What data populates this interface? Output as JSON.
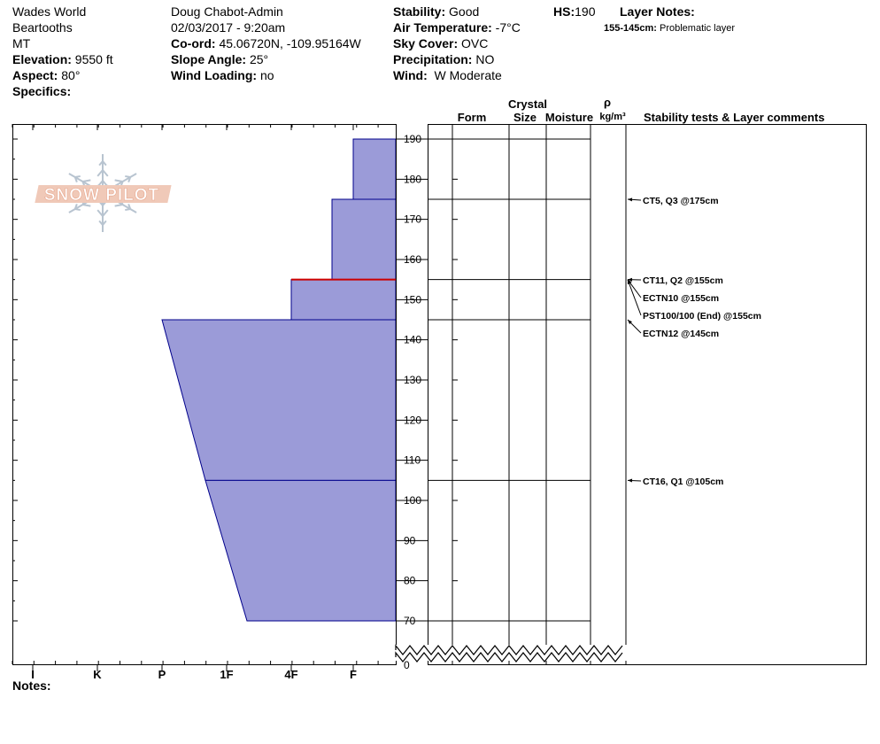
{
  "header": {
    "location": "Wades World",
    "range": "Beartooths",
    "state": "MT",
    "elevation_label": "Elevation:",
    "elevation_value": "9550 ft",
    "aspect_label": "Aspect:",
    "aspect_value": "80°",
    "specifics_label": "Specifics:",
    "observer": "Doug Chabot-Admin",
    "datetime": "02/03/2017 - 9:20am",
    "coord_label": "Co-ord:",
    "coord_value": "45.06720N, -109.95164W",
    "slope_label": "Slope Angle:",
    "slope_value": "25°",
    "wind_loading_label": "Wind Loading:",
    "wind_loading_value": "no",
    "stability_label": "Stability:",
    "stability_value": "Good",
    "air_temp_label": "Air Temperature:",
    "air_temp_value": "-7°C",
    "sky_label": "Sky Cover:",
    "sky_value": "OVC",
    "precip_label": "Precipitation:",
    "precip_value": "NO",
    "wind_label": "Wind:",
    "wind_value": "W Moderate",
    "hs_label": "HS:",
    "hs_value": "190",
    "layer_notes_label": "Layer Notes:",
    "layer_note_range": "155-145cm:",
    "layer_note_text": "Problematic layer",
    "notes_label": "Notes:"
  },
  "logo_text": "SNOW PILOT",
  "columns": {
    "crystal": "Crystal",
    "form": "Form",
    "size": "Size",
    "moisture": "Moisture",
    "rho": "ρ",
    "density_unit": "kg/m³",
    "comments": "Stability tests & Layer comments"
  },
  "colors": {
    "hardness_fill": "#9b9bd8",
    "hardness_stroke": "#00008b",
    "weak_layer": "#cc0000"
  },
  "chart_data": {
    "type": "area",
    "title": "",
    "xlabel": "",
    "ylabel": "",
    "hardness_scale": [
      "I",
      "K",
      "P",
      "1F",
      "4F",
      "F"
    ],
    "hardness_axis_direction": "reversed (F at right, I at left)",
    "y_ticks": [
      190,
      180,
      170,
      160,
      150,
      140,
      130,
      120,
      110,
      100,
      90,
      80,
      70
    ],
    "y_zero_label": "0",
    "ylim": [
      70,
      190
    ],
    "axis_break": "between 0 and 70",
    "layers": [
      {
        "top": 190,
        "bottom": 175,
        "hardness_top": "F",
        "hardness_bottom": "F"
      },
      {
        "top": 175,
        "bottom": 155,
        "hardness_top": "F+",
        "hardness_bottom": "F+"
      },
      {
        "top": 155,
        "bottom": 145,
        "hardness_top": "4F",
        "hardness_bottom": "4F"
      },
      {
        "top": 145,
        "bottom": 105,
        "hardness_top": "P",
        "hardness_bottom": "1F+"
      },
      {
        "top": 105,
        "bottom": 70,
        "hardness_top": "1F+",
        "hardness_bottom": "1F-"
      }
    ],
    "weak_layer_depth": 155,
    "layer_boundaries": [
      190,
      175,
      155,
      145,
      105,
      70
    ],
    "stability_tests": [
      {
        "text": "CT5, Q3 @175cm",
        "depth": 175
      },
      {
        "text": "CT11, Q2 @155cm",
        "depth": 155
      },
      {
        "text": "ECTN10 @155cm",
        "depth": 155
      },
      {
        "text": "PST100/100 (End) @155cm",
        "depth": 155
      },
      {
        "text": "ECTN12 @145cm",
        "depth": 145
      },
      {
        "text": "CT16, Q1 @105cm",
        "depth": 105
      }
    ]
  }
}
